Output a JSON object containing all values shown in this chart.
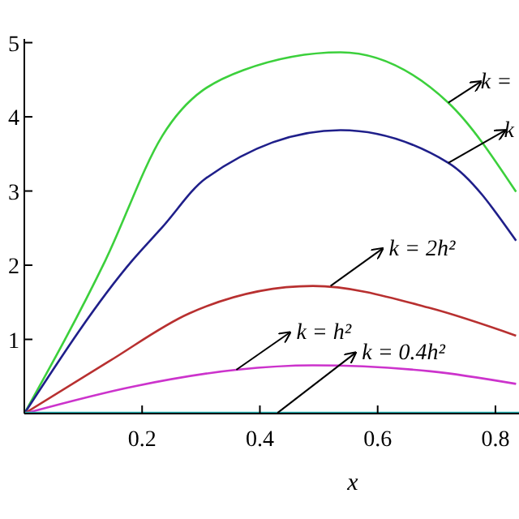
{
  "chart_data": {
    "type": "line",
    "xlabel": "x",
    "x": [
      0,
      0.138,
      0.234,
      0.372,
      0.537,
      0.72,
      0.835
    ],
    "xlim": [
      0,
      0.84
    ],
    "ylim": [
      0,
      5.05
    ],
    "xticks": [
      0.2,
      0.4,
      0.6,
      0.8
    ],
    "yticks": [
      {
        "value": 0,
        "label": null
      },
      1,
      2,
      3,
      4,
      5
    ],
    "series": [
      {
        "color": "#3cd03c",
        "values": [
          0,
          2.07,
          3.74,
          4.63,
          4.87,
          4.19,
          2.99
        ]
      },
      {
        "color": "#1f1f8a",
        "x": [
          0,
          0.184,
          0.234,
          0.308,
          0.537,
          0.72,
          0.835
        ],
        "values": [
          0,
          2.07,
          2.51,
          3.17,
          3.82,
          3.38,
          2.33
        ]
      },
      {
        "color": "#b83030",
        "x": [
          0,
          0.143,
          0.28,
          0.49,
          0.69,
          0.835
        ],
        "values": [
          0,
          0.7,
          1.35,
          1.72,
          1.42,
          1.05
        ]
      },
      {
        "color": "#cc33cc",
        "x": [
          0,
          0.188,
          0.36,
          0.49,
          0.69,
          0.835
        ],
        "values": [
          0,
          0.37,
          0.59,
          0.65,
          0.57,
          0.4
        ]
      },
      {
        "color": "#20b0b0",
        "x": [
          0,
          0.84
        ],
        "values": [
          0.01,
          0.01
        ]
      }
    ],
    "annotations": [
      {
        "text": "k =",
        "x": 0.72,
        "y": 4.19
      },
      {
        "text": "k",
        "x": 0.72,
        "y": 3.38
      },
      {
        "text": "k = 2h²",
        "x": 0.52,
        "y": 1.72
      },
      {
        "text": "k = h²",
        "x": 0.36,
        "y": 0.59
      },
      {
        "text": "k = 0.4h²",
        "x": 0.43,
        "y": 0.01
      }
    ],
    "grid": false,
    "line_style": "solid"
  }
}
